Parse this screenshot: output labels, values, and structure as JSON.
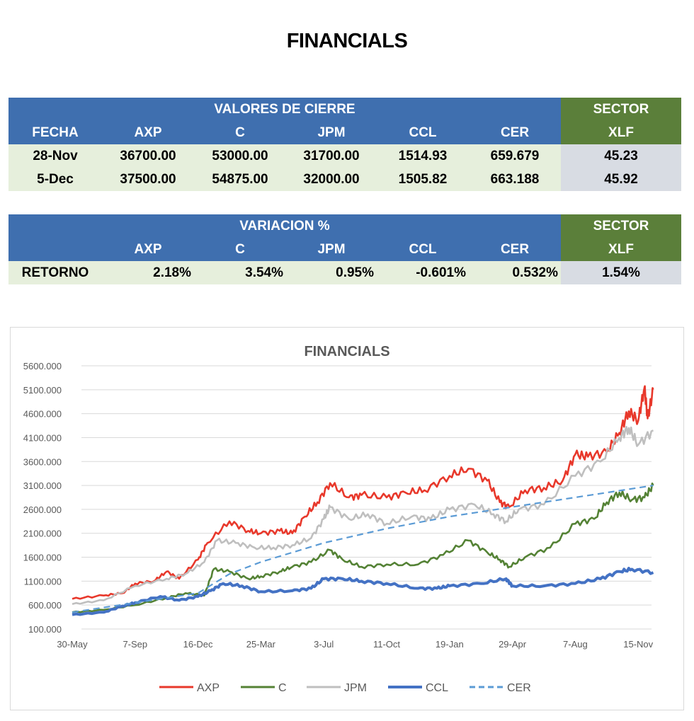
{
  "title": "FINANCIALS",
  "closing": {
    "group": "VALORES DE CIERRE",
    "sector": "SECTOR",
    "headers": [
      "FECHA",
      "AXP",
      "C",
      "JPM",
      "CCL",
      "CER",
      "XLF"
    ],
    "rows": [
      [
        "28-Nov",
        "36700.00",
        "53000.00",
        "31700.00",
        "1514.93",
        "659.679",
        "45.23"
      ],
      [
        "5-Dec",
        "37500.00",
        "54875.00",
        "32000.00",
        "1505.82",
        "663.188",
        "45.92"
      ]
    ]
  },
  "variation": {
    "group": "VARIACION %",
    "sector": "SECTOR",
    "headers": [
      "",
      "AXP",
      "C",
      "JPM",
      "CCL",
      "CER",
      "XLF"
    ],
    "rows": [
      [
        "RETORNO",
        "2.18%",
        "3.54%",
        "0.95%",
        "-0.601%",
        "0.532%",
        "1.54%"
      ]
    ]
  },
  "chart_data": {
    "type": "line",
    "title": "FINANCIALS",
    "x_ticks": [
      "30-May",
      "7-Sep",
      "16-Dec",
      "25-Mar",
      "3-Jul",
      "11-Oct",
      "19-Jan",
      "29-Apr",
      "7-Aug",
      "15-Nov"
    ],
    "y_ticks": [
      "100.000",
      "600.000",
      "1100.000",
      "1600.000",
      "2100.000",
      "2600.000",
      "3100.000",
      "3600.000",
      "4100.000",
      "4600.000",
      "5100.000",
      "5600.000"
    ],
    "ylim": [
      100,
      5600
    ],
    "xlim": [
      0,
      9.24
    ],
    "legend_position": "bottom",
    "grid": true,
    "series": [
      {
        "name": "AXP",
        "color": "#e8382b",
        "dash": false,
        "points": [
          [
            0,
            730
          ],
          [
            0.5,
            800
          ],
          [
            0.8,
            850
          ],
          [
            1,
            1050
          ],
          [
            1.3,
            1100
          ],
          [
            1.5,
            1300
          ],
          [
            1.7,
            1150
          ],
          [
            2,
            1550
          ],
          [
            2.15,
            1900
          ],
          [
            2.5,
            2350
          ],
          [
            2.8,
            2150
          ],
          [
            3,
            2100
          ],
          [
            3.3,
            2150
          ],
          [
            3.5,
            2100
          ],
          [
            3.7,
            2450
          ],
          [
            3.9,
            2750
          ],
          [
            4.1,
            3150
          ],
          [
            4.4,
            2850
          ],
          [
            4.6,
            2900
          ],
          [
            5,
            2850
          ],
          [
            5.3,
            2950
          ],
          [
            5.6,
            3000
          ],
          [
            6,
            3300
          ],
          [
            6.3,
            3450
          ],
          [
            6.6,
            3200
          ],
          [
            6.8,
            2750
          ],
          [
            6.95,
            2650
          ],
          [
            7.2,
            3000
          ],
          [
            7.5,
            3050
          ],
          [
            7.8,
            3200
          ],
          [
            8,
            3750
          ],
          [
            8.2,
            3700
          ],
          [
            8.5,
            3800
          ],
          [
            8.7,
            4200
          ],
          [
            8.85,
            4650
          ],
          [
            9,
            4450
          ],
          [
            9.1,
            5150
          ],
          [
            9.15,
            4500
          ],
          [
            9.24,
            5100
          ]
        ]
      },
      {
        "name": "C",
        "color": "#548235",
        "dash": false,
        "points": [
          [
            0,
            450
          ],
          [
            0.5,
            500
          ],
          [
            1,
            600
          ],
          [
            1.5,
            750
          ],
          [
            1.8,
            850
          ],
          [
            2.1,
            800
          ],
          [
            2.25,
            1350
          ],
          [
            2.5,
            1300
          ],
          [
            2.8,
            1150
          ],
          [
            3,
            1200
          ],
          [
            3.3,
            1300
          ],
          [
            3.5,
            1400
          ],
          [
            3.8,
            1500
          ],
          [
            4.1,
            1750
          ],
          [
            4.3,
            1550
          ],
          [
            4.6,
            1400
          ],
          [
            5,
            1450
          ],
          [
            5.5,
            1450
          ],
          [
            5.9,
            1650
          ],
          [
            6.3,
            1950
          ],
          [
            6.6,
            1700
          ],
          [
            6.8,
            1550
          ],
          [
            6.95,
            1400
          ],
          [
            7.2,
            1600
          ],
          [
            7.6,
            1800
          ],
          [
            8,
            2300
          ],
          [
            8.3,
            2400
          ],
          [
            8.5,
            2750
          ],
          [
            8.7,
            2950
          ],
          [
            8.9,
            2800
          ],
          [
            9.1,
            2850
          ],
          [
            9.24,
            3100
          ]
        ]
      },
      {
        "name": "JPM",
        "color": "#bfbfbf",
        "dash": false,
        "points": [
          [
            0,
            620
          ],
          [
            0.5,
            700
          ],
          [
            1,
            1000
          ],
          [
            1.5,
            1150
          ],
          [
            1.8,
            1250
          ],
          [
            2.1,
            1500
          ],
          [
            2.3,
            1950
          ],
          [
            2.6,
            1900
          ],
          [
            2.9,
            1800
          ],
          [
            3.2,
            1800
          ],
          [
            3.5,
            1850
          ],
          [
            3.8,
            2000
          ],
          [
            4,
            2400
          ],
          [
            4.1,
            2650
          ],
          [
            4.4,
            2400
          ],
          [
            4.7,
            2500
          ],
          [
            5,
            2300
          ],
          [
            5.4,
            2450
          ],
          [
            5.7,
            2400
          ],
          [
            6,
            2600
          ],
          [
            6.4,
            2700
          ],
          [
            6.7,
            2500
          ],
          [
            6.9,
            2350
          ],
          [
            7.1,
            2600
          ],
          [
            7.5,
            2700
          ],
          [
            8,
            3300
          ],
          [
            8.4,
            3600
          ],
          [
            8.7,
            4100
          ],
          [
            8.85,
            4300
          ],
          [
            9,
            3950
          ],
          [
            9.24,
            4250
          ]
        ]
      },
      {
        "name": "CCL",
        "color": "#4472c4",
        "dash": false,
        "points": [
          [
            0,
            400
          ],
          [
            0.5,
            450
          ],
          [
            0.8,
            580
          ],
          [
            1,
            650
          ],
          [
            1.4,
            780
          ],
          [
            1.7,
            700
          ],
          [
            2,
            780
          ],
          [
            2.2,
            900
          ],
          [
            2.4,
            1050
          ],
          [
            2.7,
            1000
          ],
          [
            3,
            880
          ],
          [
            3.5,
            900
          ],
          [
            3.8,
            950
          ],
          [
            4,
            1150
          ],
          [
            4.3,
            1150
          ],
          [
            4.6,
            1100
          ],
          [
            5,
            1050
          ],
          [
            5.5,
            950
          ],
          [
            5.8,
            950
          ],
          [
            6,
            1000
          ],
          [
            6.5,
            1050
          ],
          [
            6.9,
            1150
          ],
          [
            7,
            1000
          ],
          [
            7.5,
            1000
          ],
          [
            8,
            1050
          ],
          [
            8.4,
            1150
          ],
          [
            8.7,
            1300
          ],
          [
            8.9,
            1350
          ],
          [
            9.24,
            1280
          ]
        ]
      },
      {
        "name": "CER",
        "color": "#5b9bd5",
        "dash": true,
        "points": [
          [
            0,
            450
          ],
          [
            1,
            650
          ],
          [
            2,
            850
          ],
          [
            2.5,
            1250
          ],
          [
            3,
            1500
          ],
          [
            3.5,
            1700
          ],
          [
            4,
            1900
          ],
          [
            5,
            2200
          ],
          [
            6,
            2450
          ],
          [
            7,
            2650
          ],
          [
            8,
            2850
          ],
          [
            9.24,
            3100
          ]
        ]
      }
    ]
  }
}
